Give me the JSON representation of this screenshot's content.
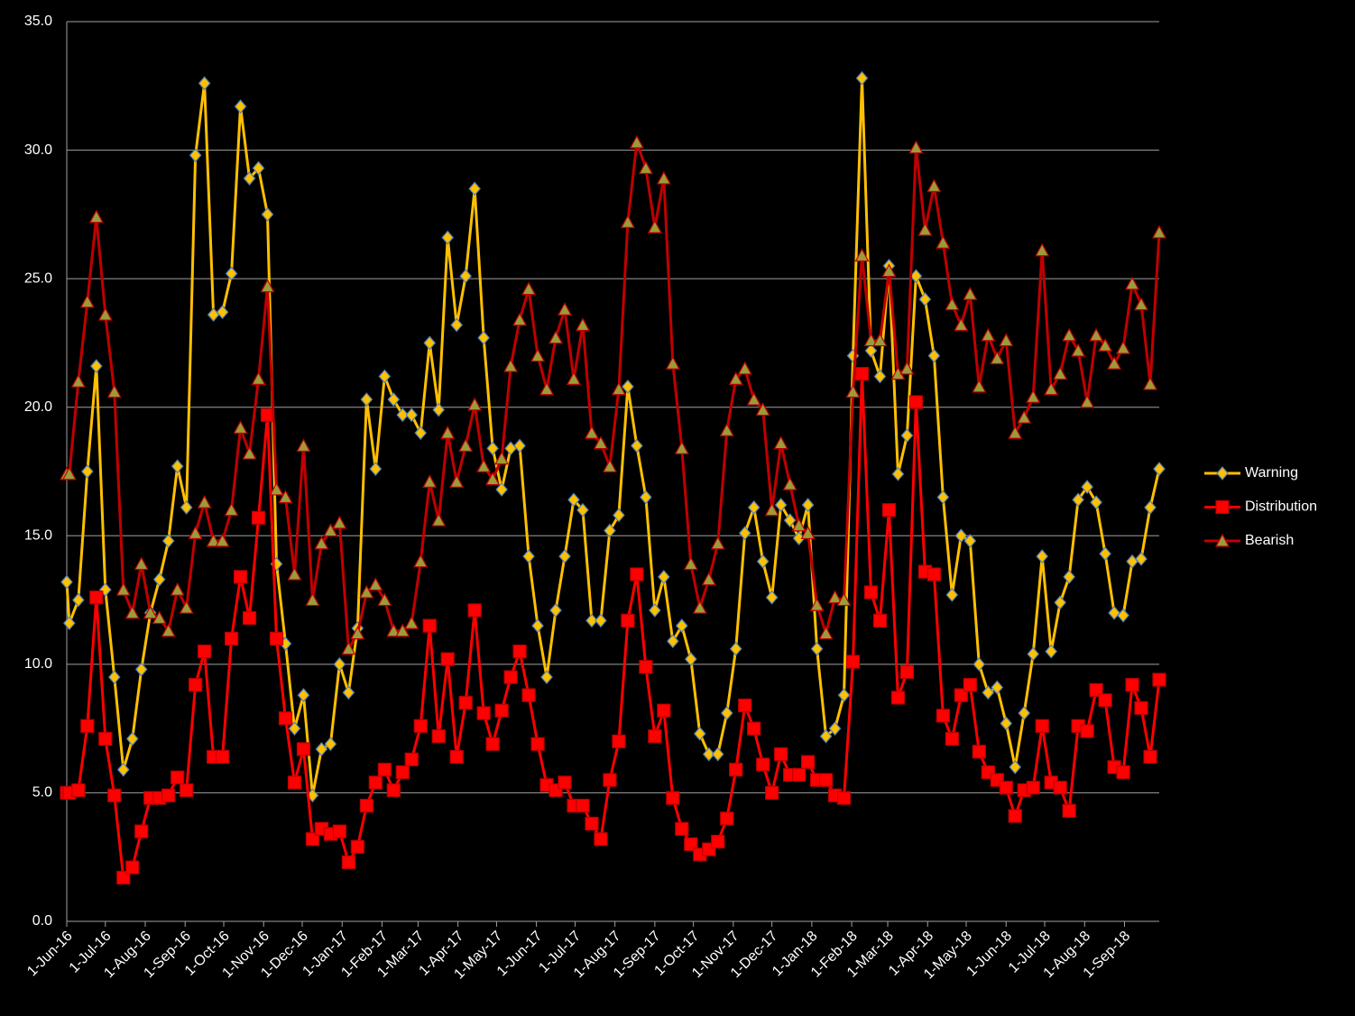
{
  "chart_data": {
    "type": "line",
    "x": [
      "2016-06-01",
      "2016-06-03",
      "2016-06-10",
      "2016-06-17",
      "2016-06-24",
      "2016-07-01",
      "2016-07-08",
      "2016-07-15",
      "2016-07-22",
      "2016-07-29",
      "2016-08-05",
      "2016-08-12",
      "2016-08-19",
      "2016-08-26",
      "2016-09-02",
      "2016-09-09",
      "2016-09-16",
      "2016-09-23",
      "2016-09-30",
      "2016-10-07",
      "2016-10-14",
      "2016-10-21",
      "2016-10-28",
      "2016-11-04",
      "2016-11-11",
      "2016-11-18",
      "2016-11-25",
      "2016-12-02",
      "2016-12-09",
      "2016-12-16",
      "2016-12-23",
      "2016-12-30",
      "2017-01-06",
      "2017-01-13",
      "2017-01-20",
      "2017-01-27",
      "2017-02-03",
      "2017-02-10",
      "2017-02-17",
      "2017-02-24",
      "2017-03-03",
      "2017-03-10",
      "2017-03-17",
      "2017-03-24",
      "2017-03-31",
      "2017-04-07",
      "2017-04-14",
      "2017-04-21",
      "2017-04-28",
      "2017-05-05",
      "2017-05-12",
      "2017-05-19",
      "2017-05-26",
      "2017-06-02",
      "2017-06-09",
      "2017-06-16",
      "2017-06-23",
      "2017-06-30",
      "2017-07-07",
      "2017-07-14",
      "2017-07-21",
      "2017-07-28",
      "2017-08-04",
      "2017-08-11",
      "2017-08-18",
      "2017-08-25",
      "2017-09-01",
      "2017-09-08",
      "2017-09-15",
      "2017-09-22",
      "2017-09-29",
      "2017-10-06",
      "2017-10-13",
      "2017-10-20",
      "2017-10-27",
      "2017-11-03",
      "2017-11-10",
      "2017-11-17",
      "2017-11-24",
      "2017-12-01",
      "2017-12-08",
      "2017-12-15",
      "2017-12-22",
      "2017-12-29",
      "2018-01-05",
      "2018-01-12",
      "2018-01-19",
      "2018-01-26",
      "2018-02-02",
      "2018-02-09",
      "2018-02-16",
      "2018-02-23",
      "2018-03-02",
      "2018-03-09",
      "2018-03-16",
      "2018-03-23",
      "2018-03-30",
      "2018-04-06",
      "2018-04-13",
      "2018-04-20",
      "2018-04-27",
      "2018-05-04",
      "2018-05-11",
      "2018-05-18",
      "2018-05-25",
      "2018-06-01",
      "2018-06-08",
      "2018-06-15",
      "2018-06-22",
      "2018-06-29",
      "2018-07-06",
      "2018-07-13",
      "2018-07-20",
      "2018-07-27",
      "2018-08-03",
      "2018-08-10",
      "2018-08-17",
      "2018-08-24",
      "2018-08-31",
      "2018-09-07",
      "2018-09-14",
      "2018-09-21",
      "2018-09-28"
    ],
    "series": [
      {
        "name": "Warning",
        "color": "#ffc000",
        "marker": "diamond",
        "marker_color": "#ffc000",
        "marker_edge": "#4f81bd",
        "values": [
          13.2,
          11.6,
          12.5,
          17.5,
          21.6,
          12.9,
          9.5,
          5.9,
          7.1,
          9.8,
          12.0,
          13.3,
          14.8,
          17.7,
          16.1,
          29.8,
          32.6,
          23.6,
          23.7,
          25.2,
          31.7,
          28.9,
          29.3,
          27.5,
          13.9,
          10.8,
          7.5,
          8.8,
          4.9,
          6.7,
          6.9,
          10.0,
          8.9,
          11.4,
          20.3,
          17.6,
          21.2,
          20.3,
          19.7,
          19.7,
          19.0,
          22.5,
          19.9,
          26.6,
          23.2,
          25.1,
          28.5,
          22.7,
          18.4,
          16.8,
          18.4,
          18.5,
          14.2,
          11.5,
          9.5,
          12.1,
          14.2,
          16.4,
          16.0,
          11.7,
          11.7,
          15.2,
          15.8,
          20.8,
          18.5,
          16.5,
          12.1,
          13.4,
          10.9,
          11.5,
          10.2,
          7.3,
          6.5,
          6.5,
          8.1,
          10.6,
          15.1,
          16.1,
          14.0,
          12.6,
          16.2,
          15.6,
          14.9,
          16.2,
          10.6,
          7.2,
          7.5,
          8.8,
          22.0,
          32.8,
          22.2,
          21.2,
          25.5,
          17.4,
          18.9,
          25.1,
          24.2,
          22.0,
          16.5,
          12.7,
          15.0,
          14.8,
          10.0,
          8.9,
          9.1,
          7.7,
          6.0,
          8.1,
          10.4,
          14.2,
          10.5,
          12.4,
          13.4,
          16.4,
          16.9,
          16.3,
          14.3,
          12.0,
          11.9,
          14.0,
          14.1,
          16.1,
          17.6
        ]
      },
      {
        "name": "Distribution",
        "color": "#ff0000",
        "marker": "square",
        "marker_color": "#ff0000",
        "marker_edge": "#c00000",
        "values": [
          5.0,
          5.0,
          5.1,
          7.6,
          12.6,
          7.1,
          4.9,
          1.7,
          2.1,
          3.5,
          4.8,
          4.8,
          4.9,
          5.6,
          5.1,
          9.2,
          10.5,
          6.4,
          6.4,
          11.0,
          13.4,
          11.8,
          15.7,
          19.7,
          11.0,
          7.9,
          5.4,
          6.7,
          3.2,
          3.6,
          3.4,
          3.5,
          2.3,
          2.9,
          4.5,
          5.4,
          5.9,
          5.1,
          5.8,
          6.3,
          7.6,
          11.5,
          7.2,
          10.2,
          6.4,
          8.5,
          12.1,
          8.1,
          6.9,
          8.2,
          9.5,
          10.5,
          8.8,
          6.9,
          5.3,
          5.1,
          5.4,
          4.5,
          4.5,
          3.8,
          3.2,
          5.5,
          7.0,
          11.7,
          13.5,
          9.9,
          7.2,
          8.2,
          4.8,
          3.6,
          3.0,
          2.6,
          2.8,
          3.1,
          4.0,
          5.9,
          8.4,
          7.5,
          6.1,
          5.0,
          6.5,
          5.7,
          5.7,
          6.2,
          5.5,
          5.5,
          4.9,
          4.8,
          10.1,
          21.3,
          12.8,
          11.7,
          16.0,
          8.7,
          9.7,
          20.2,
          13.6,
          13.5,
          8.0,
          7.1,
          8.8,
          9.2,
          6.6,
          5.8,
          5.5,
          5.2,
          4.1,
          5.1,
          5.2,
          7.6,
          5.4,
          5.2,
          4.3,
          7.6,
          7.4,
          9.0,
          8.6,
          6.0,
          5.8,
          9.2,
          8.3,
          6.4,
          9.4
        ]
      },
      {
        "name": "Bearish",
        "color": "#c00000",
        "marker": "triangle",
        "marker_color": "#9b9b3a",
        "marker_edge": "#c00000",
        "values": [
          17.4,
          17.4,
          21.0,
          24.1,
          27.4,
          23.6,
          20.6,
          12.9,
          12.0,
          13.9,
          12.0,
          11.8,
          11.3,
          12.9,
          12.2,
          15.1,
          16.3,
          14.8,
          14.8,
          16.0,
          19.2,
          18.2,
          21.1,
          24.7,
          16.8,
          16.5,
          13.5,
          18.5,
          12.5,
          14.7,
          15.2,
          15.5,
          10.6,
          11.2,
          12.8,
          13.1,
          12.5,
          11.3,
          11.3,
          11.6,
          14.0,
          17.1,
          15.6,
          19.0,
          17.1,
          18.5,
          20.1,
          17.7,
          17.2,
          18.0,
          21.6,
          23.4,
          24.6,
          22.0,
          20.7,
          22.7,
          23.8,
          21.1,
          23.2,
          19.0,
          18.6,
          17.7,
          20.7,
          27.2,
          30.3,
          29.3,
          27.0,
          28.9,
          21.7,
          18.4,
          13.9,
          12.2,
          13.3,
          14.7,
          19.1,
          21.1,
          21.5,
          20.3,
          19.9,
          16.0,
          18.6,
          17.0,
          15.4,
          15.1,
          12.3,
          11.2,
          12.6,
          12.5,
          20.6,
          25.9,
          22.6,
          22.6,
          25.3,
          21.3,
          21.5,
          30.1,
          26.9,
          28.6,
          26.4,
          24.0,
          23.2,
          24.4,
          20.8,
          22.8,
          21.9,
          22.6,
          19.0,
          19.6,
          20.4,
          26.1,
          20.7,
          21.3,
          22.8,
          22.2,
          20.2,
          22.8,
          22.4,
          21.7,
          22.3,
          24.8,
          24.0,
          20.9,
          26.8
        ]
      }
    ],
    "xlim": [
      "2016-06-01",
      "2018-09-28"
    ],
    "xticks": [
      {
        "value": "2016-06-01",
        "label": "1-Jun-16"
      },
      {
        "value": "2016-07-01",
        "label": "1-Jul-16"
      },
      {
        "value": "2016-08-01",
        "label": "1-Aug-16"
      },
      {
        "value": "2016-09-01",
        "label": "1-Sep-16"
      },
      {
        "value": "2016-10-01",
        "label": "1-Oct-16"
      },
      {
        "value": "2016-11-01",
        "label": "1-Nov-16"
      },
      {
        "value": "2016-12-01",
        "label": "1-Dec-16"
      },
      {
        "value": "2017-01-01",
        "label": "1-Jan-17"
      },
      {
        "value": "2017-02-01",
        "label": "1-Feb-17"
      },
      {
        "value": "2017-03-01",
        "label": "1-Mar-17"
      },
      {
        "value": "2017-04-01",
        "label": "1-Apr-17"
      },
      {
        "value": "2017-05-01",
        "label": "1-May-17"
      },
      {
        "value": "2017-06-01",
        "label": "1-Jun-17"
      },
      {
        "value": "2017-07-01",
        "label": "1-Jul-17"
      },
      {
        "value": "2017-08-01",
        "label": "1-Aug-17"
      },
      {
        "value": "2017-09-01",
        "label": "1-Sep-17"
      },
      {
        "value": "2017-10-01",
        "label": "1-Oct-17"
      },
      {
        "value": "2017-11-01",
        "label": "1-Nov-17"
      },
      {
        "value": "2017-12-01",
        "label": "1-Dec-17"
      },
      {
        "value": "2018-01-01",
        "label": "1-Jan-18"
      },
      {
        "value": "2018-02-01",
        "label": "1-Feb-18"
      },
      {
        "value": "2018-03-01",
        "label": "1-Mar-18"
      },
      {
        "value": "2018-04-01",
        "label": "1-Apr-18"
      },
      {
        "value": "2018-05-01",
        "label": "1-May-18"
      },
      {
        "value": "2018-06-01",
        "label": "1-Jun-18"
      },
      {
        "value": "2018-07-01",
        "label": "1-Jul-18"
      },
      {
        "value": "2018-08-01",
        "label": "1-Aug-18"
      },
      {
        "value": "2018-09-01",
        "label": "1-Sep-18"
      }
    ],
    "ylim": [
      0,
      35
    ],
    "yticks": [
      {
        "value": 0,
        "label": "0.0"
      },
      {
        "value": 5,
        "label": "5.0"
      },
      {
        "value": 10,
        "label": "10.0"
      },
      {
        "value": 15,
        "label": "15.0"
      },
      {
        "value": 20,
        "label": "20.0"
      },
      {
        "value": 25,
        "label": "25.0"
      },
      {
        "value": 30,
        "label": "30.0"
      },
      {
        "value": 35,
        "label": "35.0"
      }
    ],
    "grid": true,
    "legend": "right"
  }
}
